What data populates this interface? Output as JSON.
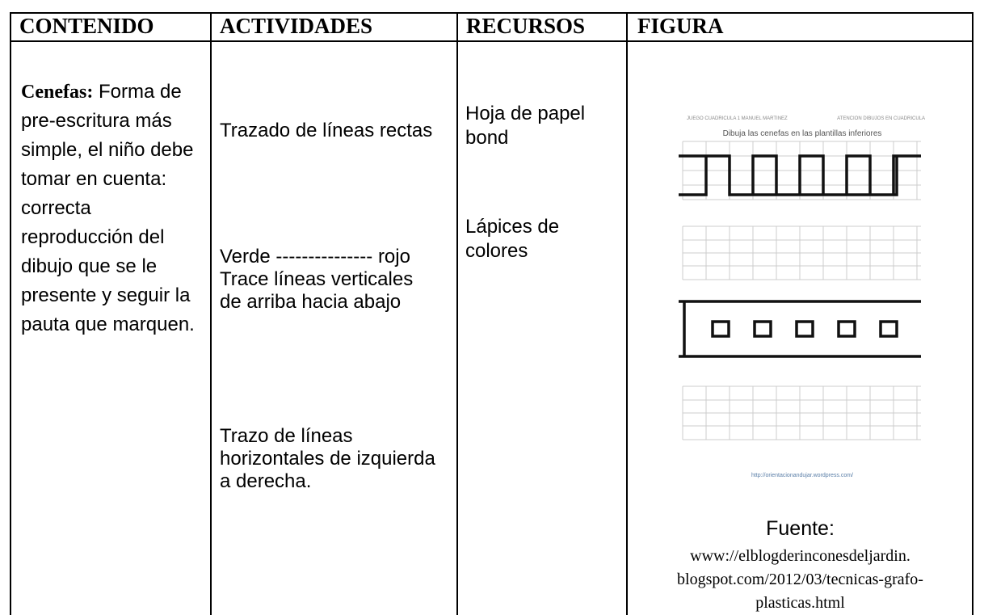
{
  "table": {
    "headers": [
      "CONTENIDO",
      "ACTIVIDADES",
      "RECURSOS",
      "FIGURA"
    ],
    "contenido": {
      "bold": "Cenefas:",
      "text": "Forma de pre-escritura más simple, el niño debe tomar en cuenta: correcta reproducción del dibujo que se le presente y seguir la pauta que marquen."
    },
    "actividades": [
      "Trazado de líneas rectas",
      "Verde --------------- rojo Trace  líneas verticales de arriba hacia abajo",
      "Trazo de líneas horizontales de izquierda a derecha."
    ],
    "recursos": [
      "Hoja de papel bond",
      "Lápices de colores"
    ],
    "figura": {
      "image": {
        "header_left": "JUEGO CUADRICULA 1 MANUEL MARTINEZ",
        "header_right": "ATENCION DIBUJOS EN CUADRICULA",
        "instruction": "Dibuja las cenefas en las plantillas inferiores",
        "url": "http://orientacionandujar.wordpress.com/"
      },
      "source_label": "Fuente:",
      "source_lines": [
        "www://elblogderinconesdeljardin.",
        "blogspot.com/2012/03/tecnicas-grafo-",
        "plasticas.html"
      ]
    }
  }
}
